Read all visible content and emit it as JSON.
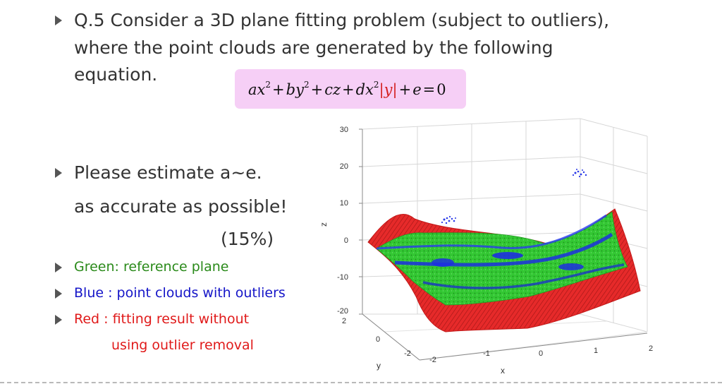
{
  "question": {
    "line1": "Q.5 Consider a 3D plane fitting problem (subject to outliers),",
    "line2": "where the point clouds are generated by the following",
    "line3": "equation."
  },
  "equation": {
    "a": "ax",
    "exp2": "2",
    "plus": "+",
    "b": "by",
    "c": "cz",
    "d": "dx",
    "y": "y",
    "e": "e",
    "eq": "=",
    "zero": "0"
  },
  "estimate": {
    "line1": "Please estimate a~e.",
    "line2": "as accurate as possible!",
    "line3": "(15%)"
  },
  "legend": {
    "green": "Green: reference plane",
    "blue": "Blue : point clouds with outliers",
    "red_line1": "Red : fitting result without",
    "red_line2": "using outlier removal"
  },
  "colors": {
    "green": "#2a8a1a",
    "blue": "#1515c8",
    "red": "#e01a1a",
    "bullet": "#555555",
    "eq_box": "#f6cff6"
  },
  "plot": {
    "z_ticks": [
      "30",
      "20",
      "10",
      "0",
      "-10",
      "-20"
    ],
    "z_label": "z",
    "y_ticks": [
      "2",
      "0",
      "-2"
    ],
    "y_label": "y",
    "x_ticks": [
      "-2",
      "-1",
      "0",
      "1",
      "2"
    ],
    "x_label": "x"
  }
}
